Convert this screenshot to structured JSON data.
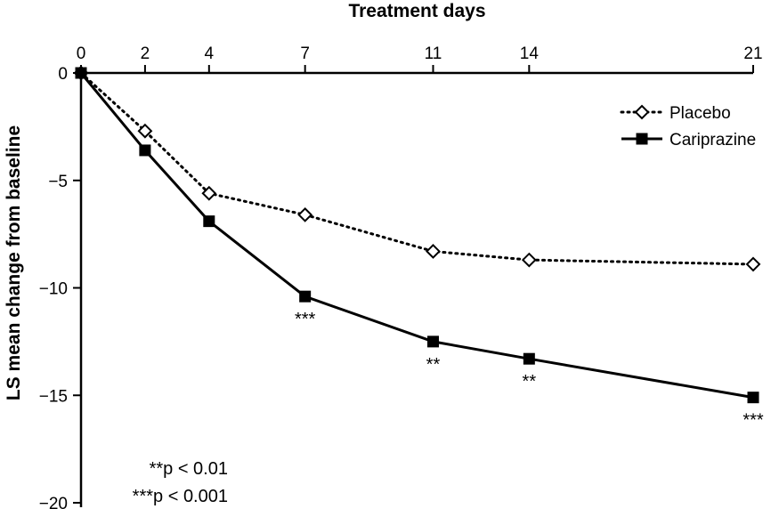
{
  "chart_data": {
    "type": "line",
    "title": "",
    "xlabel": "Treatment days",
    "ylabel": "LS mean change from baseline",
    "x_axis_position": "top",
    "x_ticks": [
      0,
      2,
      4,
      7,
      11,
      14,
      21
    ],
    "x_tick_labels": [
      "0",
      "2",
      "4",
      "7",
      "11",
      "14",
      "21"
    ],
    "y_ticks": [
      0,
      -5,
      -10,
      -15,
      -20
    ],
    "y_tick_labels": [
      "0",
      "−5",
      "−10",
      "−15",
      "−20"
    ],
    "xlim": [
      0,
      21
    ],
    "ylim": [
      -20,
      0
    ],
    "grid": false,
    "legend_position": "top-right",
    "series": [
      {
        "name": "Placebo",
        "line_style": "dotted",
        "marker": "open-diamond",
        "color": "#000000",
        "x": [
          0,
          2,
          4,
          7,
          11,
          14,
          21
        ],
        "y": [
          0,
          -2.7,
          -5.6,
          -6.6,
          -8.3,
          -8.7,
          -8.9
        ]
      },
      {
        "name": "Cariprazine",
        "line_style": "solid",
        "marker": "filled-square",
        "color": "#000000",
        "x": [
          0,
          2,
          4,
          7,
          11,
          14,
          21
        ],
        "y": [
          0,
          -3.6,
          -6.9,
          -10.4,
          -12.5,
          -13.3,
          -15.1
        ]
      }
    ],
    "annotations": [
      {
        "series": "Cariprazine",
        "x": 7,
        "text": "***"
      },
      {
        "series": "Cariprazine",
        "x": 11,
        "text": "**"
      },
      {
        "series": "Cariprazine",
        "x": 14,
        "text": "**"
      },
      {
        "series": "Cariprazine",
        "x": 21,
        "text": "***"
      }
    ],
    "footnotes": [
      "**p < 0.01",
      "***p < 0.001"
    ]
  }
}
